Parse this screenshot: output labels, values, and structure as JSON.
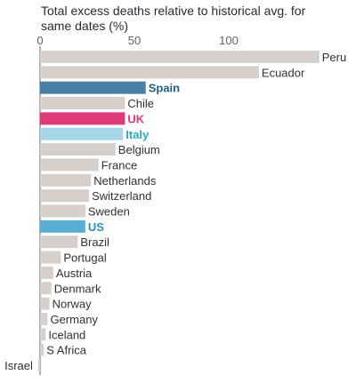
{
  "chart_data": {
    "type": "bar",
    "orientation": "horizontal",
    "title": "Total excess deaths relative to historical avg. for same dates (%)",
    "xlabel": "",
    "ylabel": "",
    "xlim": [
      0,
      140
    ],
    "xticks": [
      0,
      50,
      100
    ],
    "grid": false,
    "categories": [
      "Peru",
      "Ecuador",
      "Spain",
      "Chile",
      "UK",
      "Italy",
      "Belgium",
      "France",
      "Netherlands",
      "Switzerland",
      "Sweden",
      "US",
      "Brazil",
      "Portugal",
      "Austria",
      "Denmark",
      "Norway",
      "Germany",
      "Iceland",
      "S Africa",
      "Israel"
    ],
    "values": [
      148,
      116,
      56,
      45,
      45,
      44,
      40,
      31,
      27,
      26,
      24,
      24,
      20,
      11,
      7,
      6,
      5,
      4,
      3,
      2,
      -1
    ],
    "highlighted": [
      "Spain",
      "UK",
      "Italy",
      "US"
    ],
    "colors": {
      "default": "#d7cfca",
      "Spain": "#4a7fa5",
      "UK": "#e0397a",
      "Italy": "#a7d6e6",
      "US": "#5aaed2",
      "label_default": "#33302e",
      "label_Spain": "#1f5e8e",
      "label_UK": "#e0397a",
      "label_Italy": "#2ba7c7",
      "label_US": "#2b8ec2",
      "axis": "#66605c"
    }
  }
}
